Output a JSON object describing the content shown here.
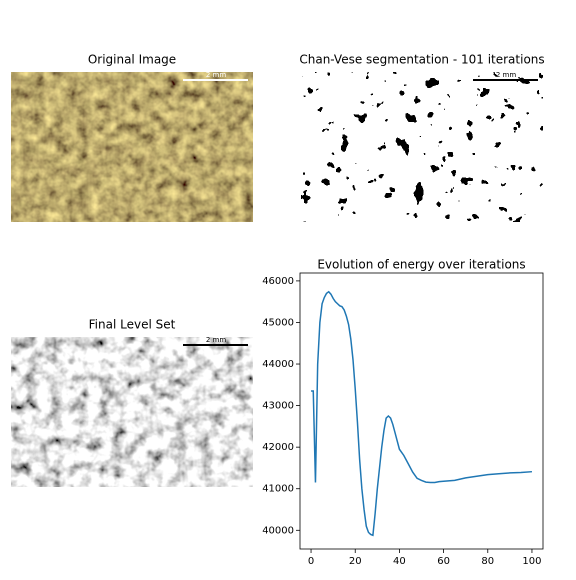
{
  "chart_data": [
    {
      "type": "image",
      "title": "Original Image",
      "scale_label": "2 mm"
    },
    {
      "type": "image",
      "title": "Chan-Vese segmentation - 101 iterations",
      "scale_label": "2 mm"
    },
    {
      "type": "image",
      "title": "Final Level Set",
      "scale_label": "2 mm"
    },
    {
      "type": "line",
      "title": "Evolution of energy over iterations",
      "color": "#1f77b4",
      "x": [
        0,
        1,
        2,
        3,
        4,
        5,
        6,
        7,
        8,
        9,
        10,
        11,
        12,
        13,
        14,
        15,
        16,
        17,
        18,
        19,
        20,
        21,
        22,
        23,
        24,
        25,
        26,
        27,
        28,
        29,
        30,
        31,
        32,
        33,
        34,
        35,
        36,
        37,
        38,
        39,
        40,
        42,
        44,
        46,
        48,
        50,
        52,
        54,
        56,
        58,
        60,
        65,
        70,
        75,
        80,
        85,
        90,
        95,
        100
      ],
      "values": [
        43350,
        43350,
        41150,
        44000,
        45000,
        45450,
        45600,
        45700,
        45740,
        45680,
        45580,
        45500,
        45450,
        45400,
        45380,
        45300,
        45150,
        44950,
        44600,
        44100,
        43400,
        42600,
        41700,
        41000,
        40500,
        40100,
        39950,
        39900,
        39880,
        40400,
        41000,
        41500,
        42000,
        42400,
        42700,
        42750,
        42700,
        42550,
        42350,
        42150,
        41950,
        41800,
        41600,
        41400,
        41250,
        41200,
        41160,
        41150,
        41150,
        41170,
        41180,
        41200,
        41260,
        41300,
        41340,
        41360,
        41380,
        41390,
        41410
      ],
      "xlim": [
        -5,
        105
      ],
      "ylim": [
        39550,
        46190
      ],
      "xticks": [
        0,
        20,
        40,
        60,
        80,
        100
      ],
      "yticks": [
        40000,
        41000,
        42000,
        43000,
        44000,
        45000,
        46000
      ]
    }
  ]
}
